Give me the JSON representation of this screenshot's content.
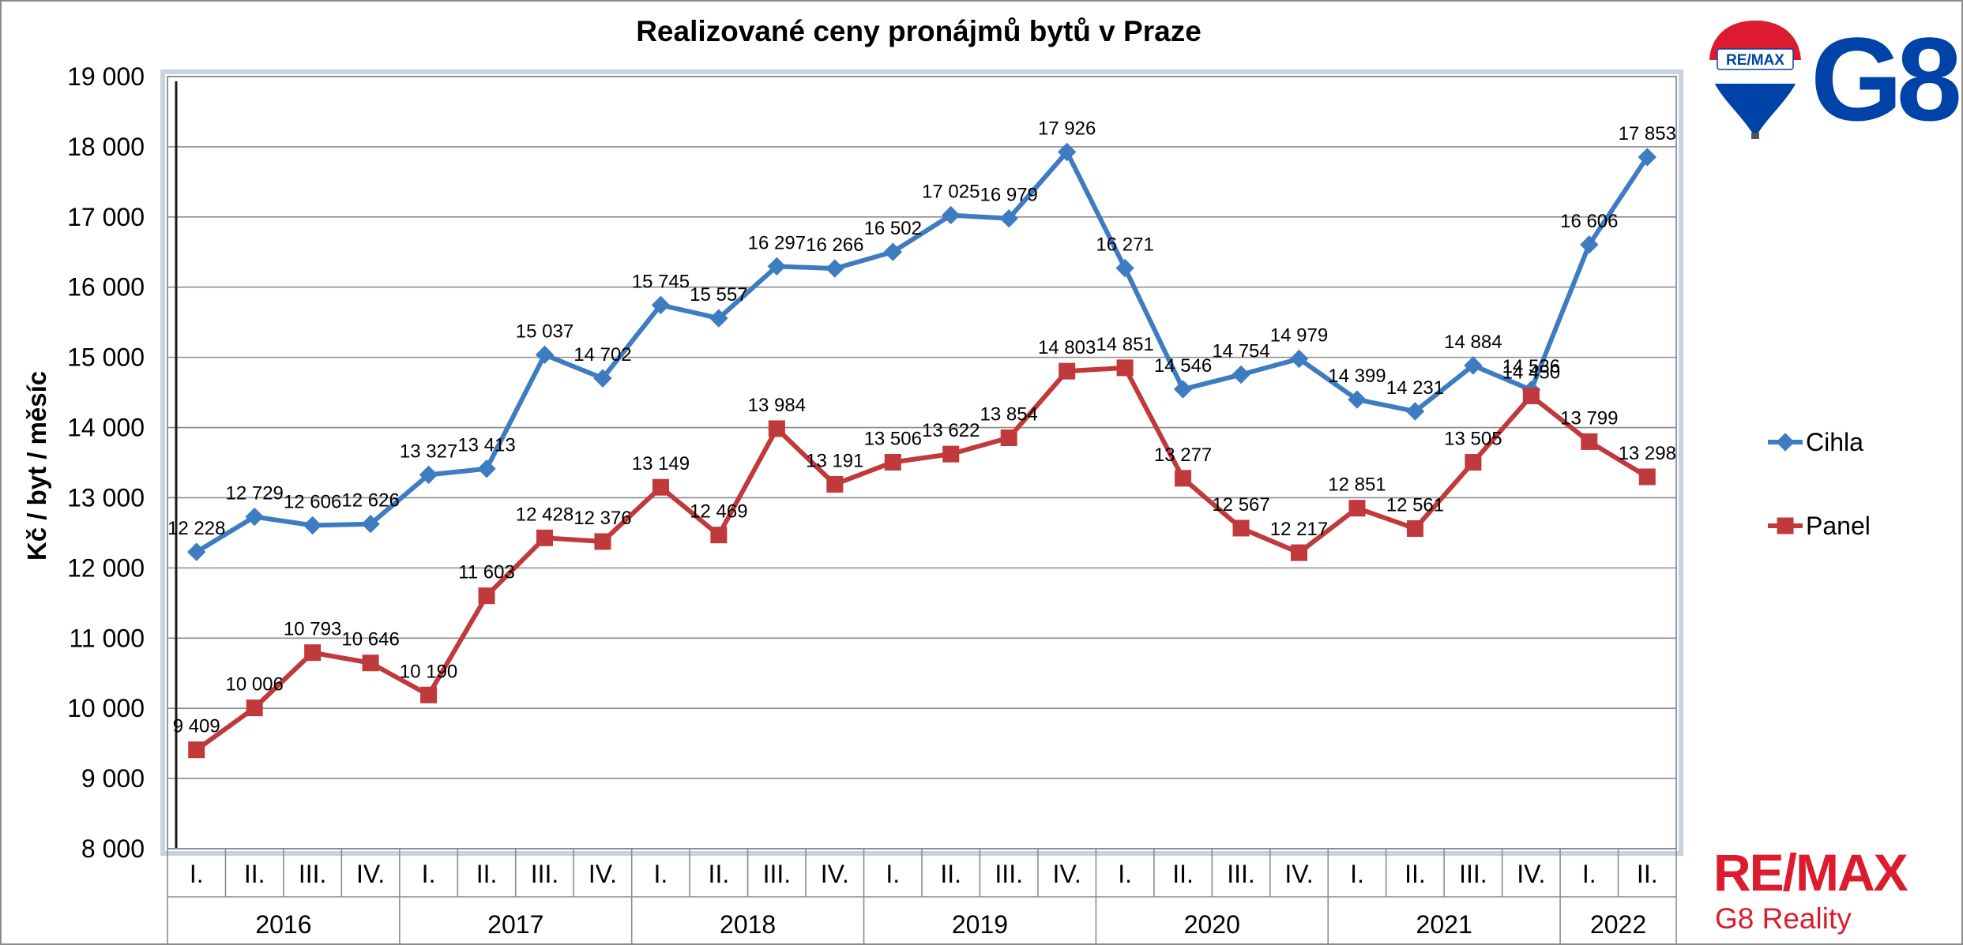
{
  "chart_data": {
    "type": "line",
    "title": "Realizované ceny pronájmů bytů v Praze",
    "ylabel": "Kč / byt / měsíc",
    "xlabel": "",
    "ylim": [
      8000,
      19000
    ],
    "ytick_labels": [
      "8 000",
      "9 000",
      "10 000",
      "11 000",
      "12 000",
      "13 000",
      "14 000",
      "15 000",
      "16 000",
      "17 000",
      "18 000",
      "19 000"
    ],
    "grid": true,
    "legend_position": "right",
    "quarters": [
      "I.",
      "II.",
      "III.",
      "IV.",
      "I.",
      "II.",
      "III.",
      "IV.",
      "I.",
      "II.",
      "III.",
      "IV.",
      "I.",
      "II.",
      "III.",
      "IV.",
      "I.",
      "II.",
      "III.",
      "IV.",
      "I.",
      "II.",
      "III.",
      "IV.",
      "I.",
      "II."
    ],
    "years": [
      {
        "label": "2016",
        "span": 4
      },
      {
        "label": "2017",
        "span": 4
      },
      {
        "label": "2018",
        "span": 4
      },
      {
        "label": "2019",
        "span": 4
      },
      {
        "label": "2020",
        "span": 4
      },
      {
        "label": "2021",
        "span": 4
      },
      {
        "label": "2022",
        "span": 2
      }
    ],
    "series": [
      {
        "name": "Cihla",
        "color": "#3e7cc2",
        "marker": "diamond",
        "values": [
          12228,
          12729,
          12606,
          12626,
          13327,
          13413,
          15037,
          14702,
          15745,
          15557,
          16297,
          16266,
          16502,
          17025,
          16979,
          17926,
          16271,
          14546,
          14754,
          14979,
          14399,
          14231,
          14884,
          14536,
          16606,
          17853
        ],
        "labels": [
          "12 228",
          "12 729",
          "12 606",
          "12 626",
          "13 327",
          "13 413",
          "15 037",
          "14 702",
          "15 745",
          "15 557",
          "16 297",
          "16 266",
          "16 502",
          "17 025",
          "16 979",
          "17 926",
          "16 271",
          "14 546",
          "14 754",
          "14 979",
          "14 399",
          "14 231",
          "14 884",
          "14 536",
          "16 606",
          "17 853"
        ]
      },
      {
        "name": "Panel",
        "color": "#c0393b",
        "marker": "square",
        "values": [
          9409,
          10006,
          10793,
          10646,
          10190,
          11603,
          12428,
          12376,
          13149,
          12469,
          13984,
          13191,
          13506,
          13622,
          13854,
          14803,
          14851,
          13277,
          12567,
          12217,
          12851,
          12561,
          13505,
          14450,
          13799,
          13298
        ],
        "labels": [
          "9 409",
          "10 006",
          "10 793",
          "10 646",
          "10 190",
          "11 603",
          "12 428",
          "12 376",
          "13 149",
          "12 469",
          "13 984",
          "13 191",
          "13 506",
          "13 622",
          "13 854",
          "14 803",
          "14 851",
          "13 277",
          "12 567",
          "12 217",
          "12 851",
          "12 561",
          "13 505",
          "14 450",
          "13 799",
          "13 298"
        ]
      }
    ]
  },
  "branding": {
    "logo_top_text": "RE/MAX",
    "logo_top_g8": "G8",
    "logo_bottom_text": "RE/MAX",
    "logo_bottom_subtitle": "G8 Reality",
    "colors": {
      "red": "#dc1c2e",
      "blue": "#0043a8",
      "dark_blue": "#003da5"
    }
  }
}
